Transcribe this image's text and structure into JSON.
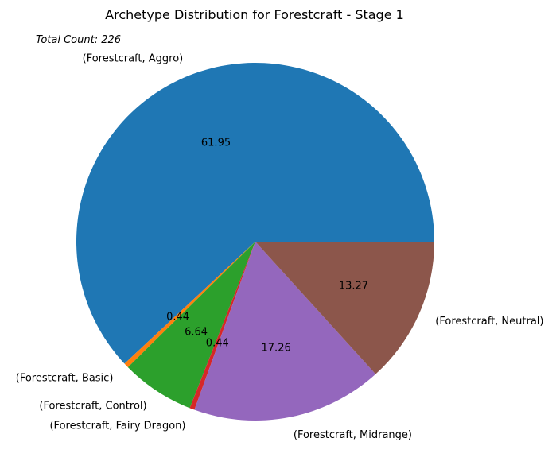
{
  "chart_data": {
    "type": "pie",
    "title": "Archetype Distribution for Forestcraft - Stage 1",
    "annotation": "Total Count: 226",
    "slices": [
      {
        "label": "(Forestcraft, Aggro)",
        "value": 61.95,
        "display": "61.95",
        "color": "#1f77b4"
      },
      {
        "label": "(Forestcraft, Basic)",
        "value": 0.44,
        "display": "0.44",
        "color": "#ff7f0e"
      },
      {
        "label": "(Forestcraft, Control)",
        "value": 6.64,
        "display": "6.64",
        "color": "#2ca02c"
      },
      {
        "label": "(Forestcraft, Fairy Dragon)",
        "value": 0.44,
        "display": "0.44",
        "color": "#d62728"
      },
      {
        "label": "(Forestcraft, Midrange)",
        "value": 17.26,
        "display": "17.26",
        "color": "#9467bd"
      },
      {
        "label": "(Forestcraft, Neutral)",
        "value": 13.27,
        "display": "13.27",
        "color": "#8c564b"
      }
    ]
  }
}
